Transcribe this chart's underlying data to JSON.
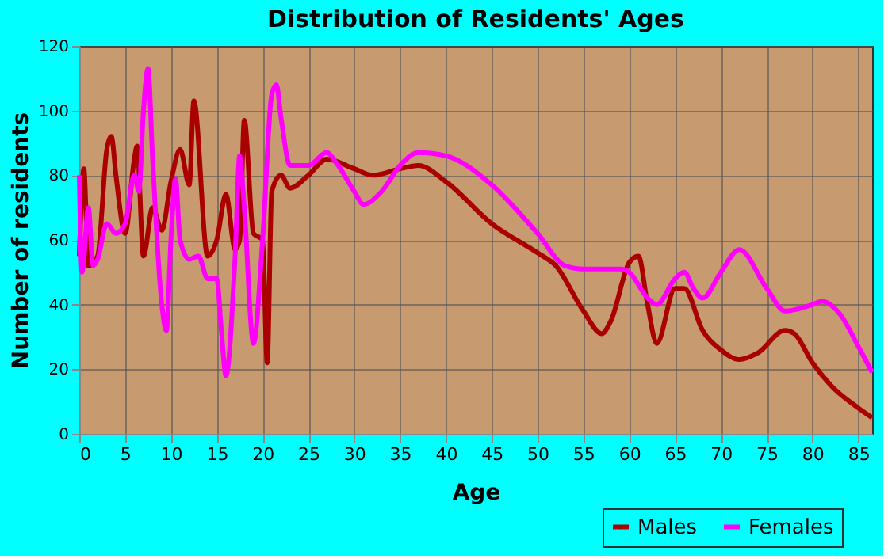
{
  "chart_data": {
    "type": "line",
    "title": "Distribution of Residents' Ages",
    "xlabel": "Age",
    "ylabel": "Number of residents",
    "xlim": [
      0,
      86.5
    ],
    "xticks": [
      0,
      5,
      10,
      15,
      20,
      25,
      30,
      35,
      40,
      45,
      50,
      55,
      60,
      65,
      70,
      75,
      80,
      85
    ],
    "ylim": [
      0,
      120
    ],
    "yticks": [
      0,
      20,
      40,
      60,
      80,
      100,
      120
    ],
    "grid": true,
    "legend": "bottom right",
    "line_style": "solid",
    "marker": "none",
    "series": [
      {
        "name": "Males",
        "color": "#aa0000",
        "x": [
          0,
          0.5,
          1,
          2,
          3,
          3.5,
          4,
          5,
          6,
          6.3,
          7,
          8,
          9,
          10,
          11,
          12,
          12.5,
          14,
          15,
          16,
          17,
          17.5,
          18,
          19,
          20,
          20.5,
          21,
          22,
          23,
          25,
          27,
          30,
          32,
          35,
          37,
          40,
          45,
          50,
          52,
          55,
          57,
          58,
          60,
          61,
          62,
          63,
          65,
          66,
          68,
          70,
          72,
          74,
          77,
          78,
          80,
          82,
          85,
          86.5
        ],
        "values": [
          55,
          82,
          52,
          55,
          88,
          92,
          80,
          62,
          85,
          89,
          55,
          70,
          63,
          78,
          88,
          77,
          103,
          55,
          60,
          74,
          57,
          60,
          97,
          62,
          60,
          22,
          75,
          80,
          76,
          80,
          85,
          82,
          80,
          82,
          83,
          78,
          65,
          56,
          52,
          38,
          31,
          35,
          53,
          55,
          40,
          28,
          45,
          45,
          32,
          26,
          23,
          25,
          32,
          31,
          22,
          15,
          8,
          5
        ]
      },
      {
        "name": "Females",
        "color": "#ff00ff",
        "x": [
          0,
          0.3,
          1,
          1.5,
          2,
          3,
          4,
          5,
          6,
          6.5,
          7,
          7.5,
          8,
          9,
          9.5,
          10,
          10.5,
          11,
          12,
          13,
          14,
          15,
          15.5,
          16,
          17,
          17.5,
          18,
          19,
          20,
          21,
          21.5,
          22,
          23,
          25,
          27,
          28,
          30,
          31,
          33,
          35,
          37,
          40,
          45,
          50,
          53,
          55,
          59,
          60,
          62,
          63,
          65,
          66,
          67,
          68,
          70,
          72,
          75,
          77,
          80,
          81,
          83,
          85,
          86.5
        ],
        "values": [
          80,
          50,
          70,
          52,
          54,
          65,
          62,
          65,
          80,
          75,
          100,
          113,
          85,
          40,
          32,
          60,
          79,
          60,
          54,
          55,
          48,
          48,
          32,
          18,
          55,
          86,
          70,
          28,
          60,
          105,
          108,
          98,
          83,
          83,
          87,
          84,
          75,
          71,
          75,
          83,
          87,
          86,
          77,
          62,
          52,
          51,
          51,
          50,
          42,
          40,
          48,
          50,
          45,
          42,
          50,
          57,
          45,
          38,
          40,
          41,
          37,
          27,
          19
        ]
      }
    ]
  }
}
